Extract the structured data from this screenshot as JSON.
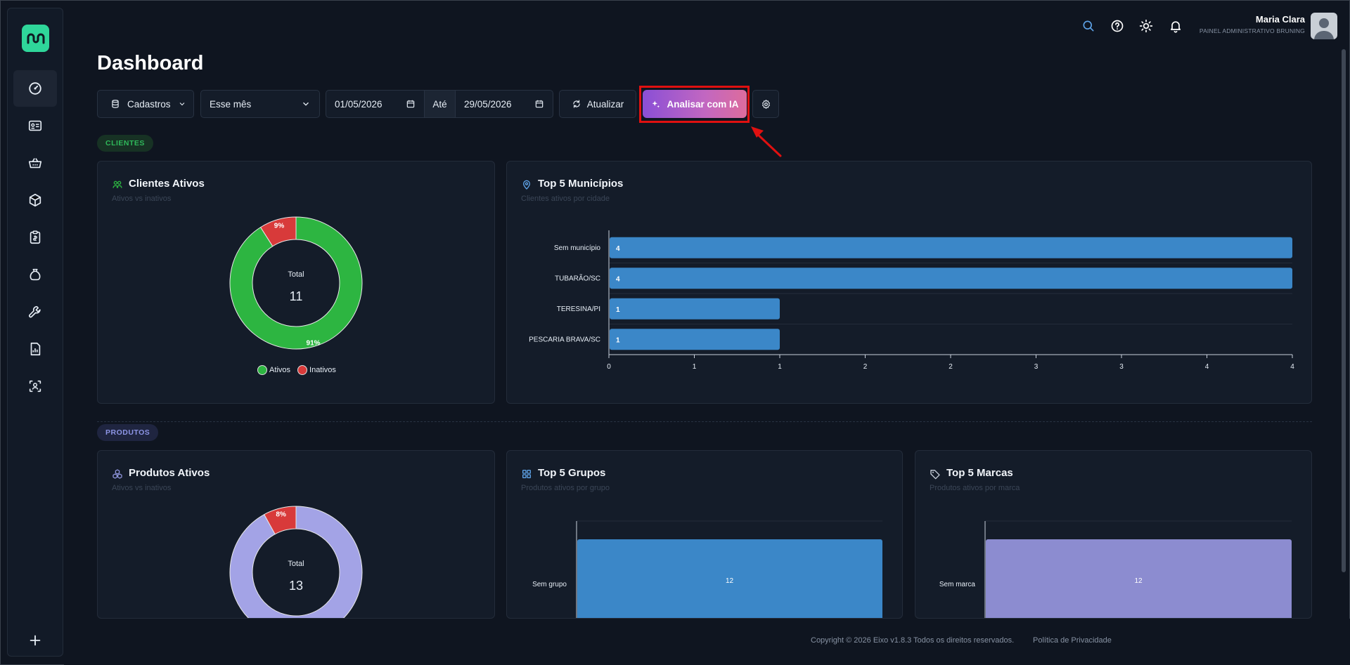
{
  "page": {
    "title": "Dashboard"
  },
  "user": {
    "name": "Maria Clara",
    "subtitle": "PAINEL ADMINISTRATIVO BRUNING"
  },
  "toolbar": {
    "entity": "Cadastros",
    "period": "Esse mês",
    "date_from": "01/05/2026",
    "range_sep": "Até",
    "date_to": "29/05/2026",
    "refresh_label": "Atualizar",
    "ai_label": "Analisar com IA"
  },
  "sections": {
    "clientes": "CLIENTES",
    "produtos": "PRODUTOS"
  },
  "cards": {
    "clientes_ativos": {
      "title": "Clientes Ativos",
      "subtitle": "Ativos vs inativos",
      "total_label": "Total",
      "total": "11"
    },
    "top_municipios": {
      "title": "Top 5 Municípios",
      "subtitle": "Clientes ativos por cidade"
    },
    "produtos_ativos": {
      "title": "Produtos Ativos",
      "subtitle": "Ativos vs inativos",
      "total_label": "Total",
      "total": "13"
    },
    "top_grupos": {
      "title": "Top 5 Grupos",
      "subtitle": "Produtos ativos por grupo"
    },
    "top_marcas": {
      "title": "Top 5 Marcas",
      "subtitle": "Produtos ativos por marca"
    }
  },
  "chart_data": [
    {
      "type": "pie",
      "title": "Clientes Ativos",
      "categories": [
        "Ativos",
        "Inativos"
      ],
      "values": [
        91,
        9
      ],
      "labels": [
        "91%",
        "9%"
      ],
      "colors": [
        "#2db541",
        "#d83a3a"
      ],
      "legend": "bottom"
    },
    {
      "type": "bar",
      "orientation": "horizontal",
      "title": "Top 5 Municípios",
      "categories": [
        "Sem município",
        "TUBARÃO/SC",
        "TERESINA/PI",
        "PESCARIA BRAVA/SC"
      ],
      "values": [
        4,
        4,
        1,
        1
      ],
      "x_ticks": [
        "0",
        "1",
        "1",
        "2",
        "2",
        "3",
        "3",
        "4",
        "4"
      ],
      "xlim": [
        0,
        4
      ],
      "color": "#3b87c8"
    },
    {
      "type": "pie",
      "title": "Produtos Ativos",
      "categories": [
        "Ativos",
        "Inativos"
      ],
      "values": [
        92,
        8
      ],
      "labels": [
        "",
        "8%"
      ],
      "colors": [
        "#a3a3e6",
        "#d83a3a"
      ]
    },
    {
      "type": "bar",
      "orientation": "horizontal",
      "title": "Top 5 Grupos",
      "categories": [
        "Sem grupo"
      ],
      "values": [
        12
      ],
      "color": "#3b87c8"
    },
    {
      "type": "bar",
      "orientation": "horizontal",
      "title": "Top 5 Marcas",
      "categories": [
        "Sem marca"
      ],
      "values": [
        12
      ],
      "color": "#8c8cd0"
    }
  ],
  "footer": {
    "copyright": "Copyright © 2026 Eixo v1.8.3 Todos os direitos reservados.",
    "privacy": "Política de Privacidade"
  },
  "icons": {
    "sidebar": [
      "dashboard-gauge-icon",
      "id-card-icon",
      "basket-icon",
      "box-icon",
      "clipboard-icon",
      "money-bag-icon",
      "wrench-icon",
      "report-icon",
      "scan-user-icon",
      "plus-icon"
    ],
    "topbar": [
      "search-icon",
      "help-icon",
      "sun-icon",
      "bell-icon"
    ]
  },
  "colors": {
    "accent": "#2fd69a",
    "primary_bar": "#3b87c8",
    "success": "#2db541",
    "danger": "#d83a3a"
  }
}
